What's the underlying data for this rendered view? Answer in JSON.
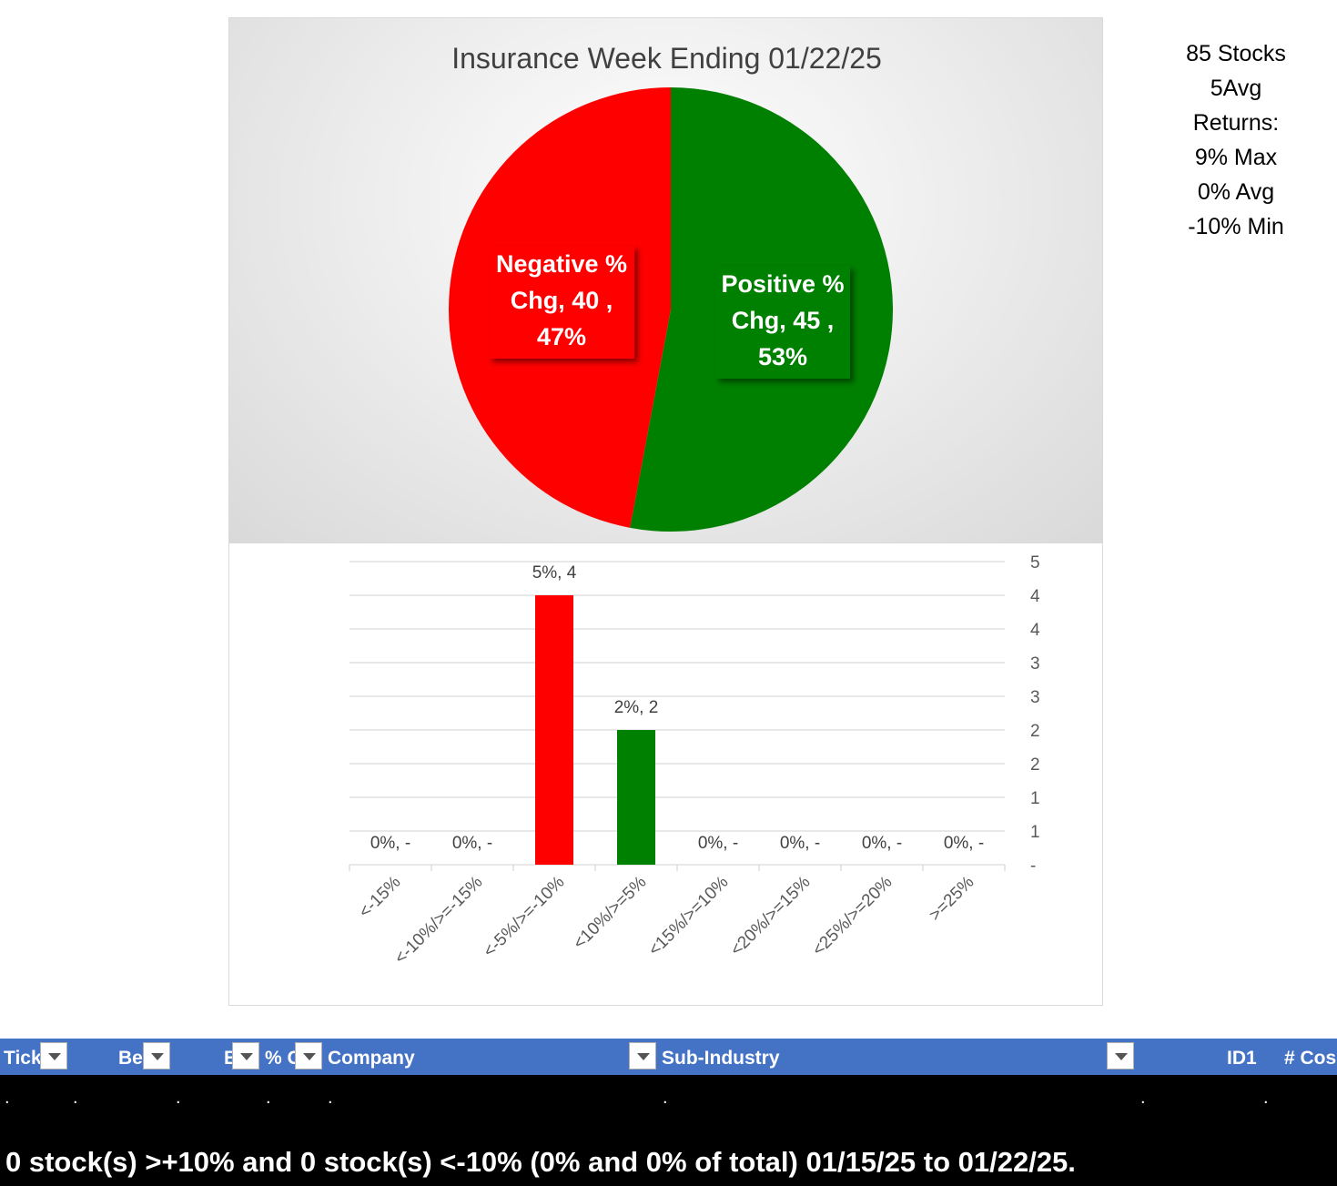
{
  "chart_data": [
    {
      "type": "pie",
      "title": "Insurance Week Ending 01/22/25",
      "slices": [
        {
          "name": "Positive % Chg",
          "value": 45,
          "percent": "53%",
          "color": "#008000"
        },
        {
          "name": "Negative % Chg",
          "value": 40,
          "percent": "47%",
          "color": "#ff0000"
        }
      ],
      "labels": {
        "positive": [
          "Positive %",
          "Chg,  45 ,",
          "53%"
        ],
        "negative": [
          "Negative %",
          "Chg,  40 ,",
          "47%"
        ]
      }
    },
    {
      "type": "bar",
      "categories": [
        "<-15%",
        "<-10%/>=-15%",
        "<-5%/>=-10%",
        "<10%/>=5%",
        "<15%/>=10%",
        "<20%/>=15%",
        "<25%/>=20%",
        ">=25%"
      ],
      "values": [
        0,
        0,
        4,
        2,
        0,
        0,
        0,
        0
      ],
      "data_labels": [
        "0%,  -",
        "0%,  -",
        "5%,  4",
        "2%,  2",
        "0%,  -",
        "0%,  -",
        "0%,  -",
        "0%,  -"
      ],
      "colors": [
        "#ff0000",
        "#ff0000",
        "#ff0000",
        "#008000",
        "#008000",
        "#008000",
        "#008000",
        "#008000"
      ],
      "ylim": [
        0,
        4.5
      ],
      "yticks": [
        {
          "v": 0,
          "label": "-"
        },
        {
          "v": 0.5,
          "label": "1"
        },
        {
          "v": 1,
          "label": "1"
        },
        {
          "v": 1.5,
          "label": "2"
        },
        {
          "v": 2,
          "label": "2"
        },
        {
          "v": 2.5,
          "label": "3"
        },
        {
          "v": 3,
          "label": "3"
        },
        {
          "v": 3.5,
          "label": "4"
        },
        {
          "v": 4,
          "label": "4"
        },
        {
          "v": 4.5,
          "label": "5"
        }
      ],
      "y_axis_side": "right",
      "grid": true
    }
  ],
  "side_stats": [
    "85 Stocks",
    "5Avg",
    "Returns:",
    "9% Max",
    "0% Avg",
    "-10% Min"
  ],
  "table": {
    "headers": [
      "Tick",
      "Be",
      "E",
      "% C",
      "Company",
      "Sub-Industry",
      "ID1",
      "# Cos"
    ],
    "row": [
      ".",
      ".",
      ".",
      ".",
      ".",
      ".",
      ".",
      "."
    ]
  },
  "footer": "0 stock(s) >+10% and 0 stock(s) <-10% (0% and 0% of total) 01/15/25 to 01/22/25."
}
